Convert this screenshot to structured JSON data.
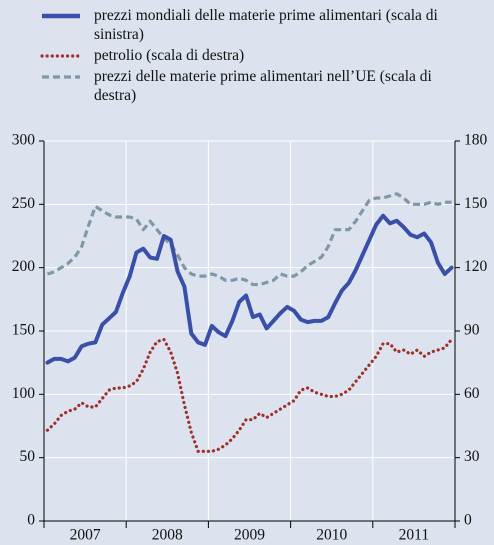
{
  "chart_data": {
    "type": "line",
    "categories": [
      null,
      null,
      null,
      null,
      null,
      null,
      "2007",
      null,
      null,
      null,
      null,
      null,
      null,
      null,
      null,
      null,
      null,
      null,
      "2008",
      null,
      null,
      null,
      null,
      null,
      null,
      null,
      null,
      null,
      null,
      null,
      "2009",
      null,
      null,
      null,
      null,
      null,
      null,
      null,
      null,
      null,
      null,
      null,
      "2010",
      null,
      null,
      null,
      null,
      null,
      null,
      null,
      null,
      null,
      null,
      null,
      "2011",
      null,
      null,
      null,
      null,
      null
    ],
    "series": [
      {
        "name": "prezzi mondiali delle materie prime alimentari (scala di sinistra)",
        "color": "#3a4fa8",
        "line_style": "solid",
        "axis": "y",
        "values": [
          125,
          128,
          128,
          126,
          129,
          138,
          140,
          141,
          155,
          160,
          165,
          180,
          193,
          212,
          215,
          208,
          207,
          225,
          222,
          197,
          185,
          148,
          141,
          139,
          154,
          149,
          146,
          158,
          173,
          178,
          161,
          163,
          152,
          158,
          164,
          169,
          166,
          159,
          157,
          158,
          158,
          161,
          172,
          182,
          188,
          198,
          210,
          222,
          234,
          241,
          235,
          237,
          232,
          226,
          224,
          227,
          220,
          204,
          195,
          200
        ]
      },
      {
        "name": "petrolio (scala di destra)",
        "color": "#a0302a",
        "line_style": "dotted",
        "axis": "y2",
        "values": [
          43,
          46,
          50,
          52,
          53,
          56,
          54,
          54,
          58,
          62,
          63,
          63,
          64,
          66,
          72,
          80,
          85,
          86,
          80,
          70,
          55,
          42,
          33,
          33,
          33,
          34,
          36,
          39,
          43,
          48,
          48,
          51,
          49,
          51,
          53,
          55,
          57,
          62,
          63,
          61,
          60,
          59,
          59,
          60,
          62,
          66,
          70,
          74,
          78,
          84,
          84,
          80,
          81,
          79,
          81,
          78,
          80,
          81,
          82,
          86
        ]
      },
      {
        "name": "prezzi delle materie prime alimentari nell’UE (scala di destra)",
        "color": "#8097a9",
        "line_style": "dashed",
        "axis": "y2",
        "values": [
          117,
          118,
          120,
          122,
          125,
          130,
          140,
          149,
          147,
          145,
          144,
          144,
          144,
          143,
          138,
          142,
          138,
          134,
          131,
          126,
          120,
          117,
          116,
          116,
          117,
          116,
          114,
          114,
          115,
          114,
          112,
          112,
          113,
          114,
          117,
          116,
          116,
          118,
          121,
          123,
          125,
          130,
          138,
          138,
          138,
          142,
          147,
          152,
          153,
          153,
          154,
          155,
          153,
          150,
          150,
          150,
          151,
          150,
          151,
          151
        ]
      }
    ],
    "ylim": [
      0,
      300
    ],
    "yticks": [
      0,
      50,
      100,
      150,
      200,
      250,
      300
    ],
    "y2lim": [
      0,
      180
    ],
    "y2ticks": [
      0,
      30,
      60,
      90,
      120,
      150,
      180
    ],
    "grid": true
  }
}
